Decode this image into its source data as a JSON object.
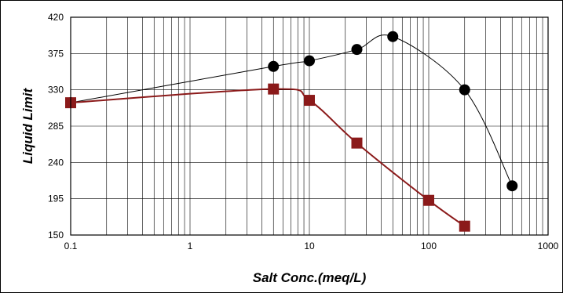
{
  "chart_data": {
    "type": "line",
    "title": "",
    "xlabel": "Salt Conc.(meq/L)",
    "ylabel": "Liquid Limit",
    "x_scale": "log",
    "xlim": [
      0.1,
      1000
    ],
    "ylim": [
      150,
      420
    ],
    "x_ticks": [
      0.1,
      1,
      10,
      100,
      1000
    ],
    "x_tick_labels": [
      "0.1",
      "1",
      "10",
      "100",
      "1000"
    ],
    "y_ticks": [
      150,
      195,
      240,
      285,
      330,
      375,
      420
    ],
    "y_tick_labels": [
      "150",
      "195",
      "240",
      "285",
      "330",
      "375",
      "420"
    ],
    "grid": true,
    "series": [
      {
        "marker": "circle",
        "color": "#000000",
        "x": [
          0.1,
          5,
          10,
          25,
          50,
          200,
          500
        ],
        "y": [
          314,
          359,
          366,
          380,
          396,
          330,
          211
        ]
      },
      {
        "marker": "square",
        "color": "#8b1a1a",
        "x": [
          0.1,
          5,
          10,
          25,
          100,
          200
        ],
        "y": [
          314,
          331,
          317,
          264,
          193,
          161
        ]
      }
    ]
  }
}
